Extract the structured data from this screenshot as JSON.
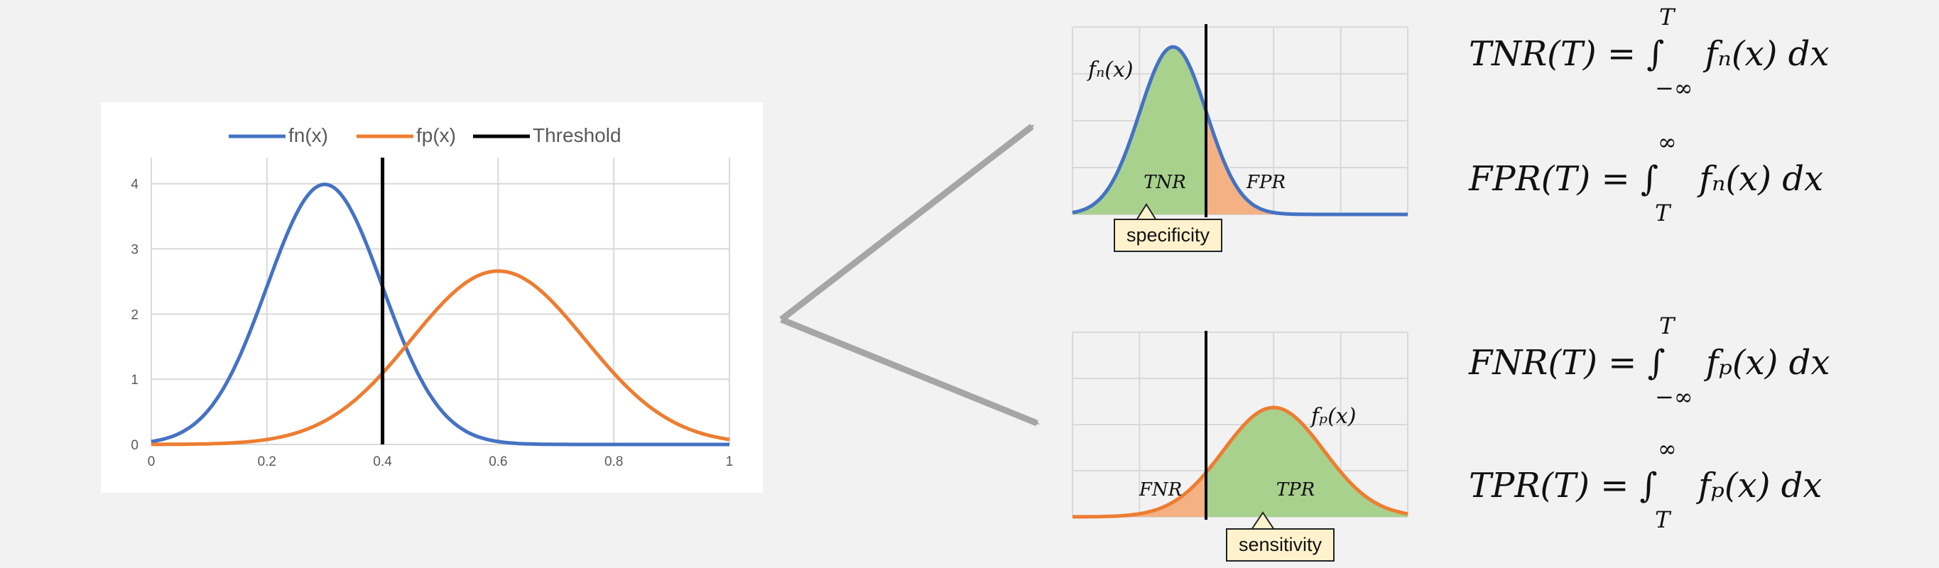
{
  "chart_data": [
    {
      "type": "line",
      "legend": [
        "fn(x)",
        "fp(x)",
        "Threshold"
      ],
      "legend_position": "top",
      "series": [
        {
          "name": "fn(x)",
          "color": "#4472c4",
          "distribution": "normal",
          "mean": 0.3,
          "sd": 0.1,
          "peak": 3.99
        },
        {
          "name": "fp(x)",
          "color": "#ed7d31",
          "distribution": "normal",
          "mean": 0.6,
          "sd": 0.15,
          "peak": 2.66
        },
        {
          "name": "Threshold",
          "color": "#000000",
          "x": 0.4
        }
      ],
      "xlim": [
        0,
        1
      ],
      "ylim": [
        0,
        4.4
      ],
      "xticks": [
        "0",
        "0.2",
        "0.4",
        "0.6",
        "0.8",
        "1"
      ],
      "yticks": [
        "0",
        "1",
        "2",
        "3",
        "4"
      ],
      "grid": true
    },
    {
      "type": "area",
      "series_label": "fn(x)",
      "regions": [
        "TNR",
        "FPR"
      ],
      "callout": "specificity",
      "grid": true
    },
    {
      "type": "area",
      "series_label": "fp(x)",
      "regions": [
        "FNR",
        "TPR"
      ],
      "callout": "sensitivity",
      "grid": true
    }
  ],
  "labels": {
    "top_curve": "fₙ(x)",
    "bottom_curve": "fₚ(x)",
    "tnr": "TNR",
    "fpr": "FPR",
    "fnr": "FNR",
    "tpr": "TPR",
    "specificity": "specificity",
    "sensitivity": "sensitivity"
  },
  "equations": {
    "tnr": {
      "lhs": "TNR(T) = ∫",
      "upper": "T",
      "lower": "−∞",
      "body": "fₙ(x) dx"
    },
    "fpr": {
      "lhs": "FPR(T) = ∫",
      "upper": "∞",
      "lower": "T",
      "body": "fₙ(x) dx"
    },
    "fnr": {
      "lhs": "FNR(T) = ∫",
      "upper": "T",
      "lower": "−∞",
      "body": "fₚ(x) dx"
    },
    "tpr": {
      "lhs": "TPR(T) = ∫",
      "upper": "∞",
      "lower": "T",
      "body": "fₚ(x) dx"
    }
  },
  "colors": {
    "blue": "#4472c4",
    "orange": "#ed7d31",
    "green_fill": "#a9d18e",
    "orange_fill": "#f4b183",
    "arrow": "#a6a6a6",
    "callout_fill": "#fff2cc"
  }
}
